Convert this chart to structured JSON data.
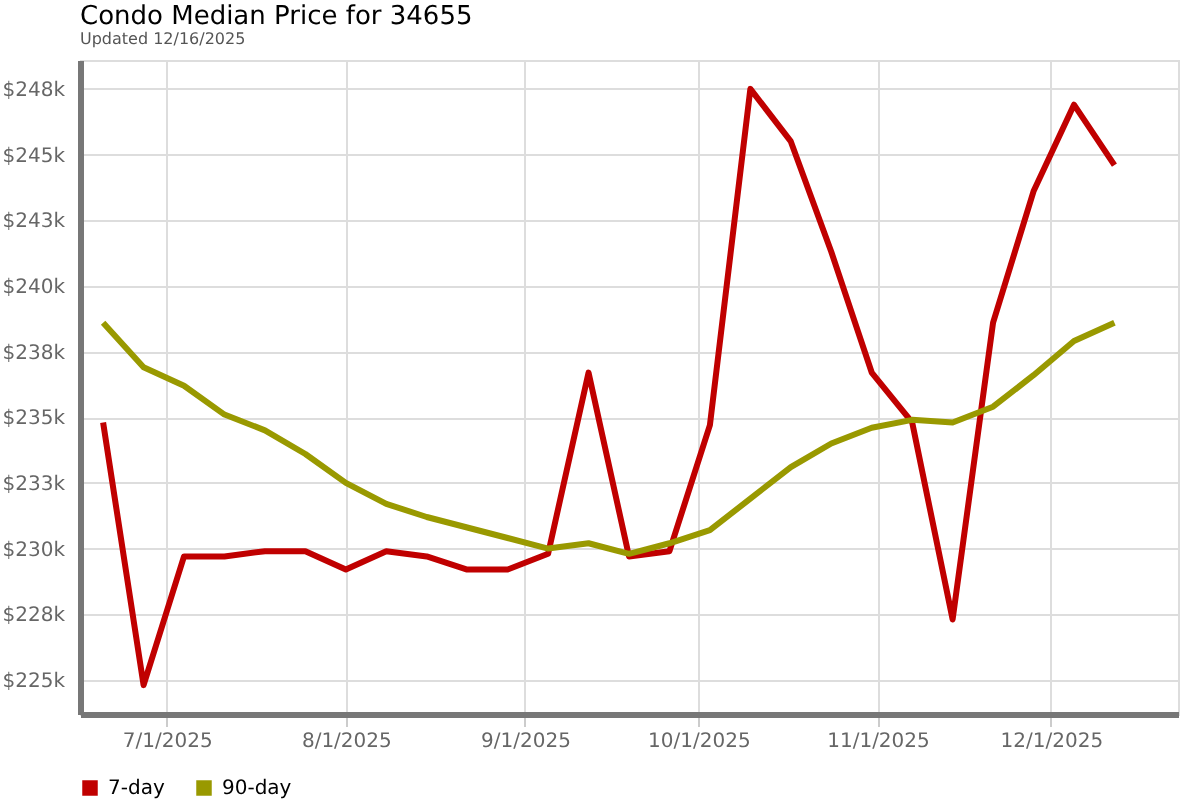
{
  "chart_data": {
    "type": "line",
    "title": "Condo Median Price for 34655",
    "subtitle": "Updated 12/16/2025",
    "x": [
      "2025-06-20",
      "2025-06-27",
      "2025-07-04",
      "2025-07-11",
      "2025-07-18",
      "2025-07-25",
      "2025-08-01",
      "2025-08-08",
      "2025-08-15",
      "2025-08-22",
      "2025-08-29",
      "2025-09-05",
      "2025-09-12",
      "2025-09-19",
      "2025-09-26",
      "2025-10-03",
      "2025-10-10",
      "2025-10-17",
      "2025-10-24",
      "2025-10-31",
      "2025-11-07",
      "2025-11-14",
      "2025-11-21",
      "2025-11-28",
      "2025-12-05",
      "2025-12-12"
    ],
    "series": [
      {
        "name": "7-day",
        "color": "#c00000",
        "values": [
          234800,
          224800,
          229700,
          229700,
          229900,
          229900,
          229200,
          229900,
          229700,
          229200,
          229200,
          229800,
          236700,
          229700,
          229900,
          234700,
          247500,
          245500,
          241300,
          236700,
          234800,
          227300,
          238600,
          243600,
          246900,
          244600
        ]
      },
      {
        "name": "90-day",
        "color": "#999900",
        "values": [
          238600,
          236900,
          236200,
          235100,
          234500,
          233600,
          232500,
          231700,
          231200,
          230800,
          230400,
          230000,
          230200,
          229800,
          230200,
          230700,
          231900,
          233100,
          234000,
          234600,
          234900,
          234800,
          235400,
          236600,
          237900,
          238600
        ]
      }
    ],
    "xlim": [
      "2025-06-16",
      "2025-12-23"
    ],
    "ylim": [
      223700,
      248600
    ],
    "xticks": [
      {
        "value": "2025-07-01",
        "label": "7/1/2025"
      },
      {
        "value": "2025-08-01",
        "label": "8/1/2025"
      },
      {
        "value": "2025-09-01",
        "label": "9/1/2025"
      },
      {
        "value": "2025-10-01",
        "label": "10/1/2025"
      },
      {
        "value": "2025-11-01",
        "label": "11/1/2025"
      },
      {
        "value": "2025-12-01",
        "label": "12/1/2025"
      }
    ],
    "yticks": [
      {
        "value": 225000,
        "label": "$225k"
      },
      {
        "value": 227500,
        "label": "$228k"
      },
      {
        "value": 230000,
        "label": "$230k"
      },
      {
        "value": 232500,
        "label": "$233k"
      },
      {
        "value": 235000,
        "label": "$235k"
      },
      {
        "value": 237500,
        "label": "$238k"
      },
      {
        "value": 240000,
        "label": "$240k"
      },
      {
        "value": 242500,
        "label": "$243k"
      },
      {
        "value": 245000,
        "label": "$245k"
      },
      {
        "value": 247500,
        "label": "$248k"
      }
    ],
    "grid": true,
    "legend": "bottom left",
    "marker": "none",
    "line_style": "solid"
  }
}
